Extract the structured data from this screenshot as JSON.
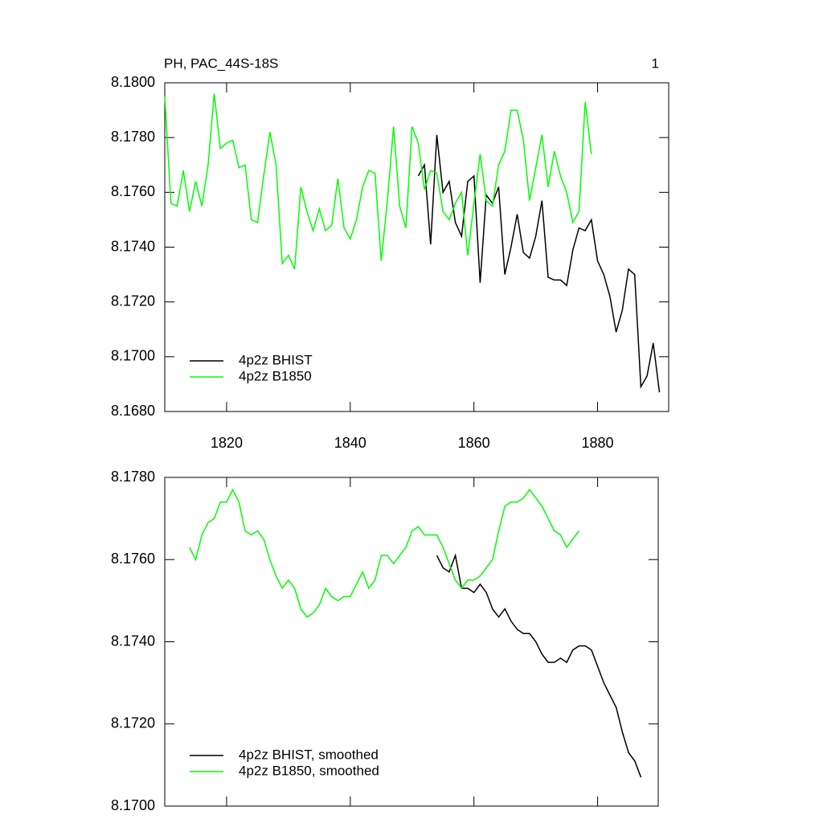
{
  "chart_data": [
    {
      "type": "line",
      "title": "PH, PAC_44S-18S",
      "annotation": "1",
      "legend": "lower left",
      "xlim": [
        1810,
        1891.5
      ],
      "xticks": [
        1820,
        1840,
        1860,
        1880
      ],
      "xtick_labels": true,
      "ylim": [
        8.168,
        8.18
      ],
      "yticks": [
        {
          "value": 8.168,
          "label": "8.1680"
        },
        {
          "value": 8.17,
          "label": "8.1700"
        },
        {
          "value": 8.172,
          "label": "8.1720"
        },
        {
          "value": 8.174,
          "label": "8.1740"
        },
        {
          "value": 8.176,
          "label": "8.1760"
        },
        {
          "value": 8.178,
          "label": "8.1780"
        },
        {
          "value": 8.18,
          "label": "8.1800"
        }
      ],
      "series": [
        {
          "name": "4p2z BHIST",
          "color": "#000000",
          "x": [
            1851,
            1852,
            1853,
            1854,
            1855,
            1856,
            1857,
            1858,
            1859,
            1860,
            1861,
            1862,
            1863,
            1864,
            1865,
            1866,
            1867,
            1868,
            1869,
            1870,
            1871,
            1872,
            1873,
            1874,
            1875,
            1876,
            1877,
            1878,
            1879,
            1880,
            1881,
            1882,
            1883,
            1884,
            1885,
            1886,
            1887,
            1888,
            1889,
            1890
          ],
          "values": [
            8.1766,
            8.177,
            8.1741,
            8.1781,
            8.176,
            8.1764,
            8.1749,
            8.1744,
            8.1764,
            8.1766,
            8.1727,
            8.1759,
            8.1756,
            8.1762,
            8.173,
            8.174,
            8.1752,
            8.1738,
            8.1736,
            8.1744,
            8.1757,
            8.1729,
            8.1728,
            8.1728,
            8.1726,
            8.1739,
            8.1747,
            8.1746,
            8.175,
            8.1735,
            8.173,
            8.1722,
            8.1709,
            8.1717,
            8.1732,
            8.173,
            8.1689,
            8.1693,
            8.1705,
            8.1687
          ]
        },
        {
          "name": "4p2z B1850",
          "color": "#00ff00",
          "x": [
            1810,
            1811,
            1812,
            1813,
            1814,
            1815,
            1816,
            1817,
            1818,
            1819,
            1820,
            1821,
            1822,
            1823,
            1824,
            1825,
            1826,
            1827,
            1828,
            1829,
            1830,
            1831,
            1832,
            1833,
            1834,
            1835,
            1836,
            1837,
            1838,
            1839,
            1840,
            1841,
            1842,
            1843,
            1844,
            1845,
            1846,
            1847,
            1848,
            1849,
            1850,
            1851,
            1852,
            1853,
            1854,
            1855,
            1856,
            1857,
            1858,
            1859,
            1860,
            1861,
            1862,
            1863,
            1864,
            1865,
            1866,
            1867,
            1868,
            1869,
            1870,
            1871,
            1872,
            1873,
            1874,
            1875,
            1876,
            1877,
            1878,
            1879
          ],
          "values": [
            8.1795,
            8.1756,
            8.1755,
            8.1768,
            8.1753,
            8.1764,
            8.1755,
            8.177,
            8.1796,
            8.1776,
            8.1778,
            8.1779,
            8.1769,
            8.177,
            8.175,
            8.1749,
            8.1766,
            8.1782,
            8.177,
            8.1734,
            8.1737,
            8.1732,
            8.1762,
            8.1753,
            8.1746,
            8.1754,
            8.1746,
            8.1748,
            8.1765,
            8.1747,
            8.1743,
            8.175,
            8.1762,
            8.1768,
            8.1767,
            8.1735,
            8.1757,
            8.1784,
            8.1755,
            8.1747,
            8.1784,
            8.1778,
            8.1761,
            8.1768,
            8.1767,
            8.1753,
            8.175,
            8.1756,
            8.176,
            8.1737,
            8.1756,
            8.1774,
            8.1757,
            8.1755,
            8.177,
            8.1775,
            8.179,
            8.179,
            8.1779,
            8.1757,
            8.1769,
            8.1781,
            8.1762,
            8.1775,
            8.1766,
            8.176,
            8.1749,
            8.1753,
            8.1793,
            8.1774
          ]
        }
      ]
    },
    {
      "type": "line",
      "legend": "lower left",
      "xlim": [
        1810,
        1889.8
      ],
      "xticks": [
        1820,
        1840,
        1860,
        1880
      ],
      "xtick_labels": false,
      "ylim": [
        8.17,
        8.178
      ],
      "yticks": [
        {
          "value": 8.17,
          "label": "8.1700"
        },
        {
          "value": 8.172,
          "label": "8.1720"
        },
        {
          "value": 8.174,
          "label": "8.1740"
        },
        {
          "value": 8.176,
          "label": "8.1760"
        },
        {
          "value": 8.178,
          "label": "8.1780"
        }
      ],
      "series": [
        {
          "name": "4p2z BHIST, smoothed",
          "color": "#000000",
          "x": [
            1854,
            1855,
            1856,
            1857,
            1858,
            1859,
            1860,
            1861,
            1862,
            1863,
            1864,
            1865,
            1866,
            1867,
            1868,
            1869,
            1870,
            1871,
            1872,
            1873,
            1874,
            1875,
            1876,
            1877,
            1878,
            1879,
            1880,
            1881,
            1882,
            1883,
            1884,
            1885,
            1886,
            1887
          ],
          "values": [
            8.1761,
            8.1758,
            8.1757,
            8.1761,
            8.1753,
            8.1753,
            8.1752,
            8.1754,
            8.1752,
            8.1748,
            8.1746,
            8.1748,
            8.1745,
            8.1743,
            8.1742,
            8.1742,
            8.174,
            8.1737,
            8.1735,
            8.1735,
            8.1736,
            8.1735,
            8.1738,
            8.1739,
            8.1739,
            8.1738,
            8.1734,
            8.173,
            8.1727,
            8.1724,
            8.1718,
            8.1713,
            8.1711,
            8.1707
          ]
        },
        {
          "name": "4p2z B1850, smoothed",
          "color": "#00ff00",
          "x": [
            1814,
            1815,
            1816,
            1817,
            1818,
            1819,
            1820,
            1821,
            1822,
            1823,
            1824,
            1825,
            1826,
            1827,
            1828,
            1829,
            1830,
            1831,
            1832,
            1833,
            1834,
            1835,
            1836,
            1837,
            1838,
            1839,
            1840,
            1841,
            1842,
            1843,
            1844,
            1845,
            1846,
            1847,
            1848,
            1849,
            1850,
            1851,
            1852,
            1853,
            1854,
            1855,
            1856,
            1857,
            1858,
            1859,
            1860,
            1861,
            1862,
            1863,
            1864,
            1865,
            1866,
            1867,
            1868,
            1869,
            1870,
            1871,
            1872,
            1873,
            1874,
            1875,
            1876,
            1877
          ],
          "values": [
            8.1763,
            8.176,
            8.1766,
            8.1769,
            8.177,
            8.1774,
            8.1774,
            8.1777,
            8.1774,
            8.1767,
            8.1766,
            8.1767,
            8.1765,
            8.176,
            8.1756,
            8.1753,
            8.1755,
            8.1753,
            8.1748,
            8.1746,
            8.1747,
            8.1749,
            8.1753,
            8.1751,
            8.175,
            8.1751,
            8.1751,
            8.1754,
            8.1757,
            8.1753,
            8.1755,
            8.1761,
            8.1761,
            8.1759,
            8.1761,
            8.1763,
            8.1767,
            8.1768,
            8.1766,
            8.1766,
            8.1766,
            8.1763,
            8.1759,
            8.1755,
            8.1753,
            8.1755,
            8.1755,
            8.1756,
            8.1758,
            8.176,
            8.1767,
            8.1773,
            8.1774,
            8.1774,
            8.1775,
            8.1777,
            8.1775,
            8.1773,
            8.177,
            8.1767,
            8.1766,
            8.1763,
            8.1765,
            8.1767
          ]
        }
      ]
    }
  ]
}
